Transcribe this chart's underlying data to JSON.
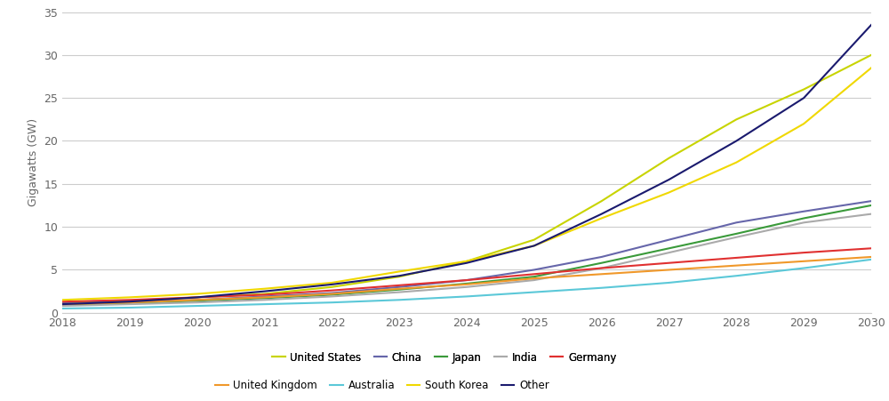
{
  "years": [
    2018,
    2019,
    2020,
    2021,
    2022,
    2023,
    2024,
    2025,
    2026,
    2027,
    2028,
    2029,
    2030
  ],
  "series": {
    "United States": {
      "color": "#c8d400",
      "values": [
        1.2,
        1.4,
        1.8,
        2.2,
        3.0,
        4.2,
        6.0,
        8.5,
        13.0,
        18.0,
        22.5,
        26.0,
        30.0
      ]
    },
    "China": {
      "color": "#6666aa",
      "values": [
        1.1,
        1.3,
        1.5,
        1.9,
        2.3,
        3.0,
        3.8,
        5.0,
        6.5,
        8.5,
        10.5,
        11.8,
        13.0
      ]
    },
    "Japan": {
      "color": "#3a9a3a",
      "values": [
        0.9,
        1.1,
        1.4,
        1.7,
        2.1,
        2.7,
        3.4,
        4.2,
        5.8,
        7.5,
        9.2,
        11.0,
        12.5
      ]
    },
    "India": {
      "color": "#aaaaaa",
      "values": [
        0.8,
        1.0,
        1.2,
        1.5,
        1.9,
        2.4,
        3.0,
        3.8,
        5.2,
        7.0,
        8.8,
        10.5,
        11.5
      ]
    },
    "Germany": {
      "color": "#e03030",
      "values": [
        1.3,
        1.5,
        1.8,
        2.1,
        2.6,
        3.2,
        3.8,
        4.5,
        5.2,
        5.8,
        6.4,
        7.0,
        7.5
      ]
    },
    "United Kingdom": {
      "color": "#f0982a",
      "values": [
        1.0,
        1.2,
        1.5,
        1.8,
        2.2,
        2.8,
        3.3,
        4.0,
        4.5,
        5.0,
        5.5,
        6.0,
        6.5
      ]
    },
    "Australia": {
      "color": "#5bc8d8",
      "values": [
        0.5,
        0.6,
        0.8,
        1.0,
        1.2,
        1.5,
        1.9,
        2.4,
        2.9,
        3.5,
        4.3,
        5.2,
        6.2
      ]
    },
    "South Korea": {
      "color": "#f0d800",
      "values": [
        1.5,
        1.8,
        2.2,
        2.8,
        3.5,
        4.8,
        6.0,
        7.8,
        11.0,
        14.0,
        17.5,
        22.0,
        28.5
      ]
    },
    "Other": {
      "color": "#1a1a6e",
      "values": [
        1.0,
        1.3,
        1.8,
        2.5,
        3.3,
        4.3,
        5.8,
        7.8,
        11.5,
        15.5,
        20.0,
        25.0,
        33.5
      ]
    }
  },
  "ylim": [
    0,
    35
  ],
  "yticks": [
    0,
    5,
    10,
    15,
    20,
    25,
    30,
    35
  ],
  "ylabel": "Gigawatts (GW)",
  "xlim": [
    2018,
    2030
  ],
  "xticks": [
    2018,
    2019,
    2020,
    2021,
    2022,
    2023,
    2024,
    2025,
    2026,
    2027,
    2028,
    2029,
    2030
  ],
  "background_color": "#ffffff",
  "grid_color": "#cccccc",
  "legend_row1": [
    "United States",
    "China",
    "Japan",
    "India",
    "Germany"
  ],
  "legend_row2": [
    "United Kingdom",
    "Australia",
    "South Korea",
    "Other"
  ]
}
